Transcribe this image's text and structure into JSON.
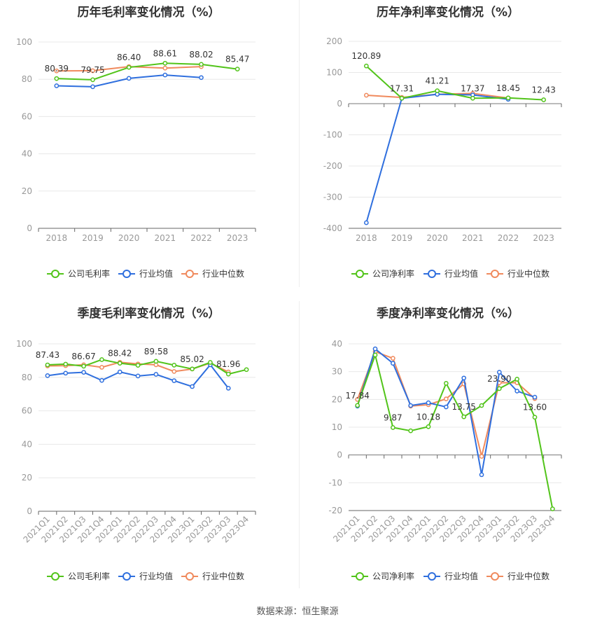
{
  "colors": {
    "company": "#52c41a",
    "avg": "#2f6fde",
    "median": "#f08a5d",
    "grid": "#e8e8e8",
    "axis": "#999999",
    "label": "#333333"
  },
  "legend": {
    "gross_company": "公司毛利率",
    "net_company": "公司净利率",
    "avg": "行业均值",
    "median": "行业中位数"
  },
  "footer": {
    "source": "数据来源：恒生聚源"
  },
  "chart_data": [
    {
      "id": "annual-gross",
      "type": "line",
      "title": "历年毛利率变化情况（%）",
      "categories": [
        "2018",
        "2019",
        "2020",
        "2021",
        "2022",
        "2023"
      ],
      "ylim": [
        0,
        100
      ],
      "yticks": [
        0,
        20,
        40,
        60,
        80,
        100
      ],
      "series": [
        {
          "name": "公司毛利率",
          "key": "company",
          "values": [
            80.39,
            79.75,
            86.4,
            88.61,
            88.02,
            85.47
          ]
        },
        {
          "name": "行业均值",
          "key": "avg",
          "values": [
            76.5,
            76.0,
            80.5,
            82.3,
            80.9,
            null
          ]
        },
        {
          "name": "行业中位数",
          "key": "median",
          "values": [
            84.5,
            84.6,
            86.8,
            86.0,
            86.8,
            null
          ]
        }
      ],
      "labels": [
        {
          "i": 0,
          "text": "80.39"
        },
        {
          "i": 1,
          "text": "79.75"
        },
        {
          "i": 2,
          "text": "86.40"
        },
        {
          "i": 3,
          "text": "88.61"
        },
        {
          "i": 4,
          "text": "88.02"
        },
        {
          "i": 5,
          "text": "85.47"
        }
      ],
      "rotate_x": false
    },
    {
      "id": "annual-net",
      "type": "line",
      "title": "历年净利率变化情况（%）",
      "categories": [
        "2018",
        "2019",
        "2020",
        "2021",
        "2022",
        "2023"
      ],
      "ylim": [
        -400,
        200
      ],
      "yticks": [
        -400,
        -300,
        -200,
        -100,
        0,
        100,
        200
      ],
      "series": [
        {
          "name": "公司净利率",
          "key": "company",
          "values": [
            120.89,
            17.31,
            41.21,
            17.37,
            18.45,
            12.43
          ]
        },
        {
          "name": "行业均值",
          "key": "avg",
          "values": [
            -382.0,
            17.0,
            30.0,
            28.0,
            14.0,
            null
          ]
        },
        {
          "name": "行业中位数",
          "key": "median",
          "values": [
            27.0,
            20.0,
            30.0,
            33.0,
            18.0,
            null
          ]
        }
      ],
      "labels": [
        {
          "i": 0,
          "text": "120.89"
        },
        {
          "i": 1,
          "text": "17.31"
        },
        {
          "i": 2,
          "text": "41.21"
        },
        {
          "i": 3,
          "text": "17.37"
        },
        {
          "i": 4,
          "text": "18.45"
        },
        {
          "i": 5,
          "text": "12.43"
        }
      ],
      "rotate_x": false
    },
    {
      "id": "quarterly-gross",
      "type": "line",
      "title": "季度毛利率变化情况（%）",
      "categories": [
        "2021Q1",
        "2021Q2",
        "2021Q3",
        "2021Q4",
        "2022Q1",
        "2022Q2",
        "2022Q3",
        "2022Q4",
        "2023Q1",
        "2023Q2",
        "2023Q3",
        "2023Q4"
      ],
      "ylim": [
        0,
        100
      ],
      "yticks": [
        0,
        20,
        40,
        60,
        80,
        100
      ],
      "series": [
        {
          "name": "公司毛利率",
          "key": "company",
          "values": [
            87.43,
            87.9,
            86.67,
            90.6,
            88.42,
            87.2,
            89.58,
            87.3,
            85.02,
            88.9,
            81.96,
            84.6
          ]
        },
        {
          "name": "行业均值",
          "key": "avg",
          "values": [
            81.0,
            82.5,
            83.0,
            78.2,
            83.2,
            80.8,
            81.8,
            78.0,
            74.5,
            87.5,
            73.5,
            null
          ]
        },
        {
          "name": "行业中位数",
          "key": "median",
          "values": [
            86.8,
            87.0,
            87.5,
            86.0,
            89.0,
            88.0,
            87.5,
            83.5,
            85.0,
            88.5,
            83.2,
            null
          ]
        }
      ],
      "labels": [
        {
          "i": 0,
          "text": "87.43"
        },
        {
          "i": 2,
          "text": "86.67"
        },
        {
          "i": 4,
          "text": "88.42"
        },
        {
          "i": 6,
          "text": "89.58"
        },
        {
          "i": 8,
          "text": "85.02"
        },
        {
          "i": 10,
          "text": "81.96"
        }
      ],
      "rotate_x": true
    },
    {
      "id": "quarterly-net",
      "type": "line",
      "title": "季度净利率变化情况（%）",
      "categories": [
        "2021Q1",
        "2021Q2",
        "2021Q3",
        "2021Q4",
        "2022Q1",
        "2022Q2",
        "2022Q3",
        "2022Q4",
        "2023Q1",
        "2023Q2",
        "2023Q3",
        "2023Q4"
      ],
      "ylim": [
        -20,
        40
      ],
      "yticks": [
        -20,
        -10,
        0,
        10,
        20,
        30,
        40
      ],
      "series": [
        {
          "name": "公司净利率",
          "key": "company",
          "values": [
            17.84,
            36.0,
            9.87,
            8.7,
            10.18,
            25.8,
            13.75,
            17.8,
            23.9,
            27.3,
            13.6,
            -19.4
          ]
        },
        {
          "name": "行业均值",
          "key": "avg",
          "values": [
            17.6,
            38.2,
            33.0,
            17.8,
            18.8,
            17.3,
            27.7,
            -7.1,
            29.8,
            23.0,
            20.8,
            null
          ]
        },
        {
          "name": "行业中位数",
          "key": "median",
          "values": [
            20.0,
            37.2,
            34.8,
            17.6,
            18.1,
            20.2,
            25.6,
            -0.5,
            26.0,
            26.0,
            20.3,
            null
          ]
        }
      ],
      "labels": [
        {
          "i": 0,
          "text": "17.84"
        },
        {
          "i": 2,
          "text": "9.87"
        },
        {
          "i": 4,
          "text": "10.18"
        },
        {
          "i": 6,
          "text": "13.75"
        },
        {
          "i": 8,
          "text": "23.90"
        },
        {
          "i": 10,
          "text": "13.60"
        }
      ],
      "rotate_x": true
    }
  ]
}
